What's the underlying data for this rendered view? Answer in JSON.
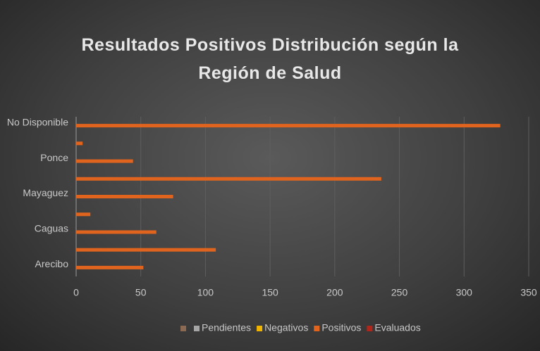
{
  "chart_data": {
    "type": "bar",
    "orientation": "horizontal",
    "title": "Resultados Positivos Distribución según la Región de Salud",
    "categories": [
      "Arecibo",
      null,
      "Caguas",
      null,
      "Mayaguez",
      null,
      "Ponce",
      null,
      "No Disponible"
    ],
    "values": [
      52,
      108,
      62,
      11,
      75,
      236,
      44,
      5,
      328
    ],
    "color": "#e0641e",
    "xlim": [
      0,
      350
    ],
    "xticks": [
      0,
      50,
      100,
      150,
      200,
      250,
      300,
      350
    ],
    "grid": true,
    "legend": [
      {
        "color": "#8a6a52"
      },
      {
        "name": "Pendientes",
        "color": "#a5a5a5"
      },
      {
        "name": "Negativos",
        "color": "#f0b400"
      },
      {
        "name": "Positivos",
        "color": "#e0641e"
      },
      {
        "name": "Evaluados",
        "color": "#b0261a"
      }
    ],
    "legend_position": "bottom"
  }
}
